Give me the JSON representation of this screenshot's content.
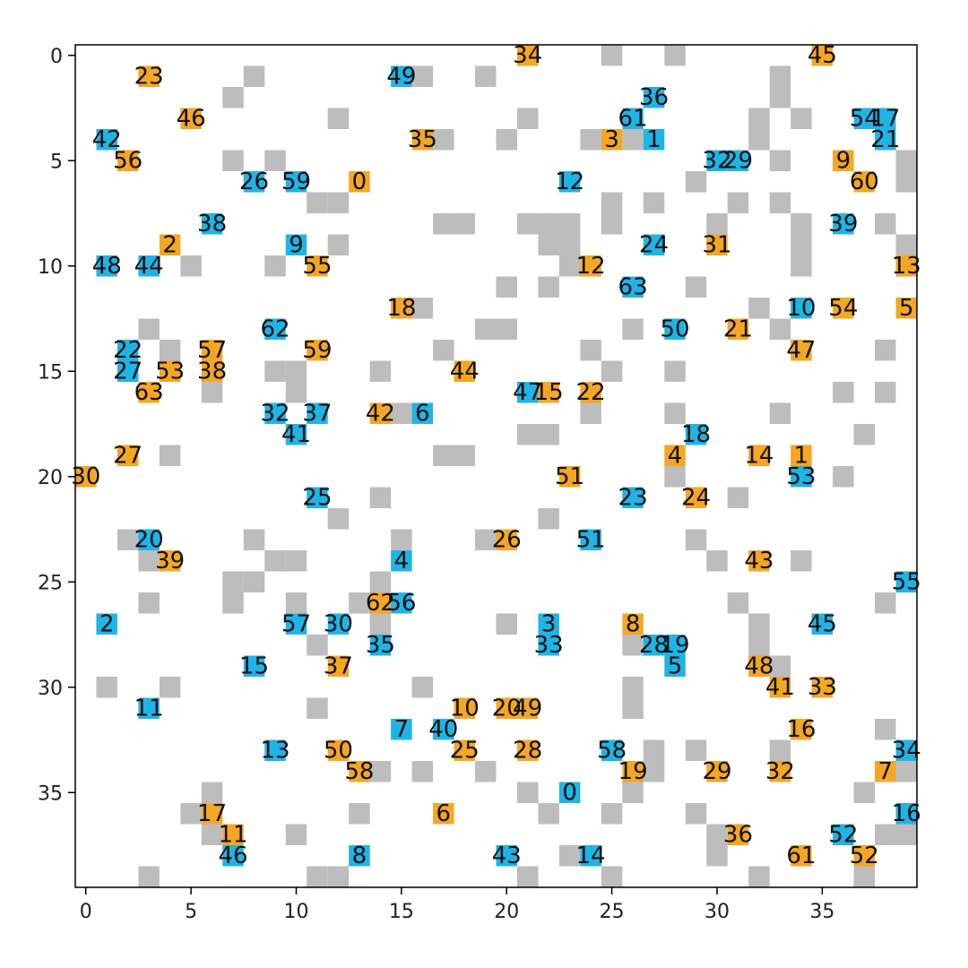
{
  "chart_data": {
    "type": "grid",
    "xlim": [
      -0.5,
      39.5
    ],
    "ylim": [
      39.5,
      -0.5
    ],
    "xticks": [
      0,
      5,
      10,
      15,
      20,
      25,
      30,
      35
    ],
    "yticks": [
      0,
      5,
      10,
      15,
      20,
      25,
      30,
      35
    ],
    "obstacle_color": "#bdbdbd",
    "obstacles": [
      [
        25,
        0
      ],
      [
        28,
        0
      ],
      [
        8,
        1
      ],
      [
        16,
        1
      ],
      [
        19,
        1
      ],
      [
        33,
        1
      ],
      [
        7,
        2
      ],
      [
        33,
        2
      ],
      [
        12,
        3
      ],
      [
        21,
        3
      ],
      [
        32,
        3
      ],
      [
        34,
        3
      ],
      [
        17,
        4
      ],
      [
        20,
        4
      ],
      [
        24,
        4
      ],
      [
        26,
        4
      ],
      [
        32,
        4
      ],
      [
        7,
        5
      ],
      [
        9,
        5
      ],
      [
        33,
        5
      ],
      [
        39,
        5
      ],
      [
        29,
        6
      ],
      [
        39,
        6
      ],
      [
        11,
        7
      ],
      [
        12,
        7
      ],
      [
        25,
        7
      ],
      [
        27,
        7
      ],
      [
        31,
        7
      ],
      [
        33,
        7
      ],
      [
        17,
        8
      ],
      [
        18,
        8
      ],
      [
        21,
        8
      ],
      [
        22,
        8
      ],
      [
        23,
        8
      ],
      [
        25,
        8
      ],
      [
        30,
        8
      ],
      [
        34,
        8
      ],
      [
        38,
        8
      ],
      [
        12,
        9
      ],
      [
        22,
        9
      ],
      [
        23,
        9
      ],
      [
        34,
        9
      ],
      [
        39,
        9
      ],
      [
        5,
        10
      ],
      [
        9,
        10
      ],
      [
        23,
        10
      ],
      [
        34,
        10
      ],
      [
        20,
        11
      ],
      [
        22,
        11
      ],
      [
        29,
        11
      ],
      [
        16,
        12
      ],
      [
        32,
        12
      ],
      [
        3,
        13
      ],
      [
        19,
        13
      ],
      [
        20,
        13
      ],
      [
        26,
        13
      ],
      [
        33,
        13
      ],
      [
        4,
        14
      ],
      [
        17,
        14
      ],
      [
        24,
        14
      ],
      [
        38,
        14
      ],
      [
        9,
        15
      ],
      [
        10,
        15
      ],
      [
        14,
        15
      ],
      [
        25,
        15
      ],
      [
        28,
        15
      ],
      [
        6,
        16
      ],
      [
        10,
        16
      ],
      [
        36,
        16
      ],
      [
        38,
        16
      ],
      [
        15,
        17
      ],
      [
        24,
        17
      ],
      [
        28,
        17
      ],
      [
        33,
        17
      ],
      [
        21,
        18
      ],
      [
        22,
        18
      ],
      [
        37,
        18
      ],
      [
        4,
        19
      ],
      [
        17,
        19
      ],
      [
        18,
        19
      ],
      [
        28,
        20
      ],
      [
        36,
        20
      ],
      [
        14,
        21
      ],
      [
        31,
        21
      ],
      [
        12,
        22
      ],
      [
        22,
        22
      ],
      [
        2,
        23
      ],
      [
        8,
        23
      ],
      [
        15,
        23
      ],
      [
        19,
        23
      ],
      [
        29,
        23
      ],
      [
        3,
        24
      ],
      [
        9,
        24
      ],
      [
        10,
        24
      ],
      [
        30,
        24
      ],
      [
        34,
        24
      ],
      [
        7,
        25
      ],
      [
        8,
        25
      ],
      [
        14,
        25
      ],
      [
        3,
        26
      ],
      [
        7,
        26
      ],
      [
        10,
        26
      ],
      [
        13,
        26
      ],
      [
        31,
        26
      ],
      [
        38,
        26
      ],
      [
        14,
        27
      ],
      [
        20,
        27
      ],
      [
        32,
        27
      ],
      [
        11,
        28
      ],
      [
        26,
        28
      ],
      [
        32,
        28
      ],
      [
        32,
        29
      ],
      [
        33,
        29
      ],
      [
        1,
        30
      ],
      [
        4,
        30
      ],
      [
        16,
        30
      ],
      [
        26,
        30
      ],
      [
        11,
        31
      ],
      [
        26,
        31
      ],
      [
        38,
        32
      ],
      [
        27,
        33
      ],
      [
        29,
        33
      ],
      [
        33,
        33
      ],
      [
        14,
        34
      ],
      [
        16,
        34
      ],
      [
        19,
        34
      ],
      [
        27,
        34
      ],
      [
        39,
        34
      ],
      [
        6,
        35
      ],
      [
        21,
        35
      ],
      [
        26,
        35
      ],
      [
        37,
        35
      ],
      [
        5,
        36
      ],
      [
        13,
        36
      ],
      [
        22,
        36
      ],
      [
        25,
        36
      ],
      [
        29,
        36
      ],
      [
        6,
        37
      ],
      [
        10,
        37
      ],
      [
        30,
        37
      ],
      [
        38,
        37
      ],
      [
        39,
        37
      ],
      [
        23,
        38
      ],
      [
        30,
        38
      ],
      [
        3,
        39
      ],
      [
        11,
        39
      ],
      [
        12,
        39
      ],
      [
        21,
        39
      ],
      [
        25,
        39
      ],
      [
        32,
        39
      ],
      [
        37,
        39
      ]
    ],
    "series": [
      {
        "color": "#f5a623",
        "labels": [
          "23",
          "34",
          "45",
          "46",
          "35",
          "56",
          "0",
          "3",
          "9",
          "60",
          "2",
          "55",
          "31",
          "12",
          "13",
          "18",
          "54",
          "5",
          "21",
          "57",
          "59",
          "47",
          "53",
          "38",
          "44",
          "63",
          "15",
          "22",
          "42",
          "27",
          "30",
          "4",
          "14",
          "1",
          "51",
          "24",
          "26",
          "39",
          "43",
          "62",
          "8",
          "37",
          "48",
          "41",
          "33",
          "10",
          "20",
          "49",
          "16",
          "50",
          "25",
          "28",
          "58",
          "19",
          "29",
          "32",
          "7",
          "17",
          "6",
          "11",
          "36",
          "61",
          "52"
        ],
        "x": [
          3,
          21,
          35,
          5,
          16,
          2,
          13,
          25,
          36,
          37,
          4,
          11,
          30,
          24,
          39,
          15,
          36,
          39,
          31,
          6,
          11,
          34,
          4,
          6,
          18,
          3,
          22,
          24,
          14,
          2,
          0,
          28,
          32,
          34,
          23,
          29,
          20,
          4,
          32,
          14,
          26,
          12,
          32,
          33,
          35,
          18,
          20,
          21,
          34,
          12,
          18,
          21,
          13,
          26,
          30,
          33,
          38,
          6,
          17,
          7,
          31,
          34,
          37
        ],
        "y": [
          1,
          0,
          0,
          3,
          4,
          5,
          6,
          4,
          5,
          6,
          9,
          10,
          9,
          10,
          10,
          12,
          12,
          12,
          13,
          14,
          14,
          14,
          15,
          15,
          15,
          16,
          16,
          16,
          17,
          19,
          20,
          19,
          19,
          19,
          20,
          21,
          23,
          24,
          24,
          26,
          27,
          29,
          29,
          30,
          30,
          31,
          31,
          31,
          32,
          33,
          33,
          33,
          34,
          34,
          34,
          34,
          34,
          36,
          36,
          37,
          37,
          38,
          38
        ]
      },
      {
        "color": "#1fb4e6",
        "labels": [
          "49",
          "36",
          "61",
          "1",
          "54",
          "17",
          "21",
          "42",
          "26",
          "59",
          "12",
          "32",
          "29",
          "38",
          "39",
          "9",
          "24",
          "48",
          "44",
          "63",
          "10",
          "62",
          "50",
          "22",
          "27",
          "47",
          "32",
          "37",
          "41",
          "6",
          "18",
          "53",
          "25",
          "23",
          "20",
          "51",
          "4",
          "55",
          "56",
          "2",
          "57",
          "30",
          "3",
          "45",
          "35",
          "33",
          "28",
          "19",
          "5",
          "15",
          "11",
          "7",
          "40",
          "13",
          "58",
          "34",
          "0",
          "16",
          "52",
          "46",
          "8",
          "43",
          "14"
        ],
        "x": [
          15,
          27,
          26,
          27,
          37,
          38,
          38,
          1,
          8,
          10,
          23,
          30,
          31,
          6,
          36,
          10,
          27,
          1,
          3,
          26,
          34,
          9,
          28,
          2,
          2,
          21,
          9,
          11,
          10,
          16,
          29,
          34,
          11,
          26,
          3,
          24,
          15,
          39,
          15,
          1,
          10,
          12,
          22,
          35,
          14,
          22,
          27,
          28,
          28,
          8,
          3,
          15,
          17,
          9,
          25,
          39,
          23,
          39,
          36,
          7,
          13,
          20,
          24
        ],
        "y": [
          1,
          2,
          3,
          4,
          3,
          3,
          4,
          4,
          6,
          6,
          6,
          5,
          5,
          8,
          8,
          9,
          9,
          10,
          10,
          11,
          12,
          13,
          13,
          14,
          15,
          16,
          17,
          17,
          18,
          17,
          18,
          20,
          21,
          21,
          23,
          23,
          24,
          25,
          26,
          27,
          27,
          27,
          27,
          27,
          28,
          28,
          28,
          28,
          29,
          29,
          31,
          32,
          32,
          33,
          33,
          33,
          35,
          36,
          37,
          38,
          38,
          38,
          38
        ]
      }
    ]
  }
}
